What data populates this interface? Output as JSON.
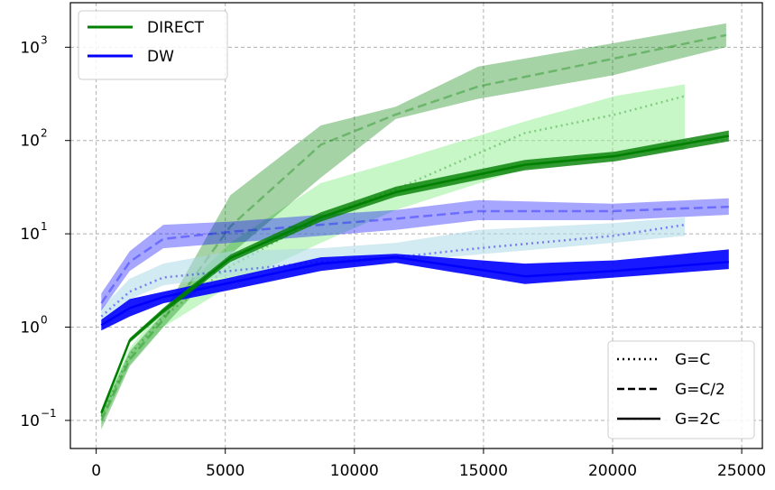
{
  "chart_data": {
    "type": "line",
    "x_scale": "linear",
    "y_scale": "log",
    "xlim": [
      -1000,
      25800
    ],
    "ylim": [
      0.05,
      3000
    ],
    "x_ticks": [
      0,
      5000,
      10000,
      15000,
      20000,
      25000
    ],
    "y_ticks": [
      {
        "value": 0.1,
        "base": "10",
        "exp": "−1"
      },
      {
        "value": 1,
        "base": "10",
        "exp": "0"
      },
      {
        "value": 10,
        "base": "10",
        "exp": "1"
      },
      {
        "value": 100,
        "base": "10",
        "exp": "2"
      },
      {
        "value": 1000,
        "base": "10",
        "exp": "3"
      }
    ],
    "grid": true,
    "colors": {
      "direct": "#008000",
      "direct_light": "#90ee90",
      "dw": "#0000ff",
      "dw_light": "#add8e6"
    },
    "legend_methods": [
      {
        "label": "DIRECT",
        "color": "#008000"
      },
      {
        "label": "DW",
        "color": "#0000ff"
      }
    ],
    "legend_styles": [
      {
        "label": "G=C",
        "dash": "dotted"
      },
      {
        "label": "G=C/2",
        "dash": "dashed"
      },
      {
        "label": "G=2C",
        "dash": "solid"
      }
    ],
    "series": [
      {
        "method": "DIRECT",
        "style": "G=C",
        "dash": "dotted",
        "color": "#008000",
        "band_color": "#90ee90",
        "band_opacity": 0.5,
        "line_opacity": 0.35,
        "x": [
          200,
          1300,
          2600,
          5200,
          8700,
          11600,
          16600,
          20100,
          22800
        ],
        "y": [
          0.11,
          0.5,
          1.3,
          4.5,
          15,
          30,
          120,
          190,
          300
        ],
        "low": [
          0.09,
          0.4,
          1.0,
          2.8,
          8,
          18,
          50,
          70,
          80
        ],
        "high": [
          0.13,
          0.6,
          1.6,
          8,
          35,
          60,
          160,
          300,
          400
        ]
      },
      {
        "method": "DIRECT",
        "style": "G=C/2",
        "dash": "dashed",
        "color": "#008000",
        "band_color": "#008000",
        "band_opacity": 0.35,
        "line_opacity": 0.35,
        "x": [
          200,
          1300,
          2600,
          5200,
          8700,
          11600,
          14800,
          20000,
          24400
        ],
        "y": [
          0.1,
          0.45,
          1.2,
          12,
          90,
          190,
          380,
          750,
          1350
        ],
        "low": [
          0.08,
          0.38,
          1.0,
          6,
          40,
          170,
          280,
          500,
          1000
        ],
        "high": [
          0.12,
          0.55,
          1.4,
          26,
          145,
          230,
          620,
          1100,
          1800
        ]
      },
      {
        "method": "DIRECT",
        "style": "G=2C",
        "dash": "solid",
        "color": "#008000",
        "band_color": "#008000",
        "band_opacity": 0.8,
        "line_opacity": 1,
        "x": [
          200,
          1300,
          2600,
          5200,
          8700,
          11600,
          16600,
          20100,
          24500
        ],
        "y": [
          0.12,
          0.72,
          1.5,
          5.5,
          15,
          28,
          55,
          68,
          112
        ],
        "low": [
          0.11,
          0.68,
          1.4,
          5.0,
          13.5,
          25,
          48,
          60,
          98
        ],
        "high": [
          0.13,
          0.76,
          1.6,
          6.0,
          17,
          32,
          62,
          76,
          128
        ]
      },
      {
        "method": "DW",
        "style": "G=C",
        "dash": "dotted",
        "color": "#0000ff",
        "band_color": "#add8e6",
        "band_opacity": 0.55,
        "line_opacity": 0.45,
        "x": [
          200,
          1300,
          2600,
          5200,
          8700,
          11600,
          14800,
          20000,
          22800
        ],
        "y": [
          1.3,
          2.4,
          3.4,
          4.0,
          5.0,
          5.6,
          7.0,
          9.5,
          12.5
        ],
        "low": [
          1.0,
          2.0,
          2.8,
          3.5,
          4.5,
          5.0,
          6.0,
          8.0,
          9.5
        ],
        "high": [
          1.6,
          3.3,
          4.8,
          6.5,
          7.0,
          8.0,
          11,
          13,
          15
        ]
      },
      {
        "method": "DW",
        "style": "G=C/2",
        "dash": "dashed",
        "color": "#0000ff",
        "band_color": "#0000ff",
        "band_opacity": 0.35,
        "line_opacity": 0.35,
        "x": [
          200,
          1300,
          2600,
          5200,
          8700,
          11600,
          14800,
          20000,
          24500
        ],
        "y": [
          1.8,
          5.0,
          8.8,
          10.5,
          12.5,
          14.5,
          17.5,
          17.5,
          19.5
        ],
        "low": [
          1.5,
          4.0,
          7.0,
          8.0,
          9.5,
          11,
          14,
          14,
          16
        ],
        "high": [
          2.3,
          6.5,
          12.5,
          13.5,
          16,
          18,
          23,
          21,
          24
        ]
      },
      {
        "method": "DW",
        "style": "G=2C",
        "dash": "solid",
        "color": "#0000ff",
        "band_color": "#0000ff",
        "band_opacity": 0.9,
        "line_opacity": 1,
        "x": [
          200,
          1300,
          2600,
          5200,
          8700,
          11600,
          16600,
          20100,
          24500
        ],
        "y": [
          1.05,
          1.6,
          2.1,
          3.0,
          4.8,
          5.6,
          3.5,
          4.0,
          5.0
        ],
        "low": [
          0.92,
          1.3,
          1.8,
          2.5,
          4.0,
          4.9,
          2.9,
          3.4,
          4.2
        ],
        "high": [
          1.2,
          2.0,
          2.4,
          3.4,
          5.6,
          6.1,
          4.8,
          5.2,
          6.8
        ]
      }
    ]
  }
}
